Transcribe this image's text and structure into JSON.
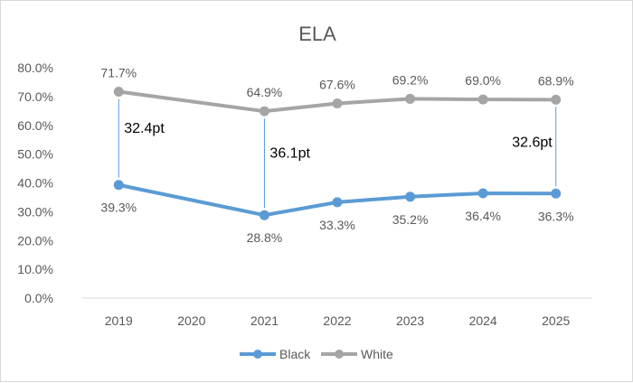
{
  "chart_data": {
    "type": "line",
    "title": "ELA",
    "categories": [
      "2019",
      "2020",
      "2021",
      "2022",
      "2023",
      "2024",
      "2025"
    ],
    "ylim": [
      0,
      80
    ],
    "yticks": [
      "0.0%",
      "10.0%",
      "20.0%",
      "30.0%",
      "40.0%",
      "50.0%",
      "60.0%",
      "70.0%",
      "80.0%"
    ],
    "grid": false,
    "legend_position": "bottom",
    "series": [
      {
        "name": "Black",
        "color": "#5b9bd5",
        "values": [
          39.3,
          null,
          28.8,
          33.3,
          35.2,
          36.4,
          36.3
        ],
        "labels": [
          "39.3%",
          "",
          "28.8%",
          "33.3%",
          "35.2%",
          "36.4%",
          "36.3%"
        ]
      },
      {
        "name": "White",
        "color": "#a5a5a5",
        "values": [
          71.7,
          null,
          64.9,
          67.6,
          69.2,
          69.0,
          68.9
        ],
        "labels": [
          "71.7%",
          "",
          "64.9%",
          "67.6%",
          "69.2%",
          "69.0%",
          "68.9%"
        ]
      }
    ],
    "gap_annotations": [
      {
        "category": "2019",
        "label": "32.4pt"
      },
      {
        "category": "2021",
        "label": "36.1pt"
      },
      {
        "category": "2025",
        "label": "32.6pt"
      }
    ]
  }
}
